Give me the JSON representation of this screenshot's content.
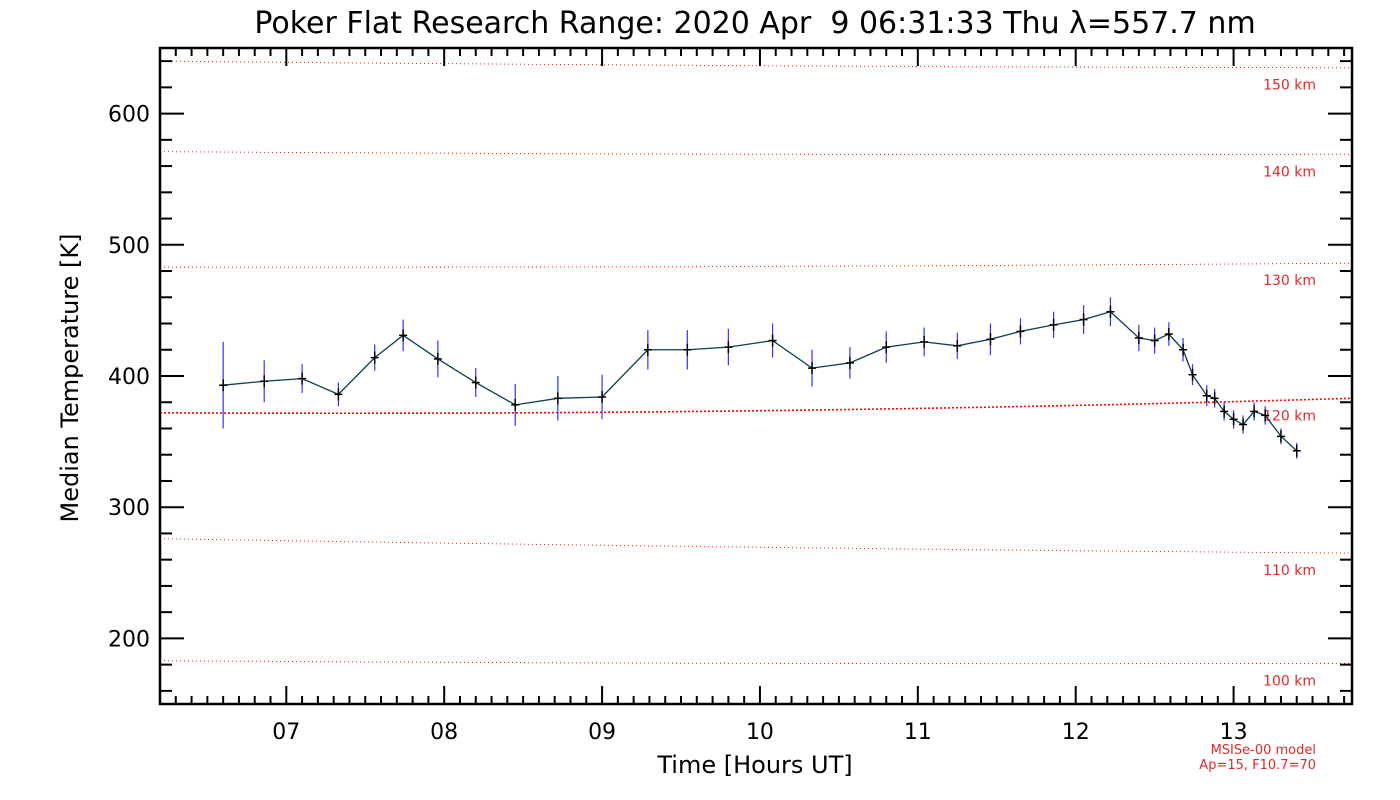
{
  "colors": {
    "axes": "#000000",
    "series_line": "#0b3d52",
    "error_bar": "#3333ff",
    "marker": "#000000",
    "model_line": "#ff0000",
    "model_text": "#e0292b",
    "background": "#ffffff"
  },
  "chart_data": {
    "type": "line",
    "title": "Poker Flat Research Range: 2020 Apr  9 06:31:33 Thu λ=557.7 nm",
    "xlabel": "Time [Hours UT]",
    "ylabel": "Median Temperature [K]",
    "xlim": [
      6.2,
      13.75
    ],
    "ylim": [
      150,
      650
    ],
    "xticks": [
      7,
      8,
      9,
      10,
      11,
      12,
      13
    ],
    "xtick_labels": [
      "07",
      "08",
      "09",
      "10",
      "11",
      "12",
      "13"
    ],
    "yticks": [
      200,
      300,
      400,
      500,
      600
    ],
    "ytick_labels": [
      "200",
      "300",
      "400",
      "500",
      "600"
    ],
    "grid": false,
    "series": [
      {
        "x": [
          6.6,
          6.86,
          7.1,
          7.33,
          7.56,
          7.74,
          7.96,
          8.2,
          8.45,
          8.72,
          9.0,
          9.29,
          9.54,
          9.8,
          10.08,
          10.33,
          10.57,
          10.8,
          11.04,
          11.25,
          11.46,
          11.65,
          11.86,
          12.05,
          12.22,
          12.4,
          12.5,
          12.59,
          12.68,
          12.74,
          12.83,
          12.88,
          12.94,
          13.0,
          13.06,
          13.13,
          13.2,
          13.3,
          13.4
        ],
        "y": [
          393,
          396,
          398,
          386,
          414,
          431,
          413,
          395,
          378,
          383,
          384,
          420,
          420,
          422,
          427,
          406,
          410,
          422,
          426,
          423,
          428,
          434,
          439,
          443,
          449,
          429,
          427,
          432,
          420,
          401,
          385,
          383,
          373,
          367,
          363,
          373,
          370,
          354,
          343
        ],
        "yerr": [
          33,
          16,
          11,
          9,
          10,
          12,
          14,
          11,
          16,
          17,
          17,
          15,
          15,
          14,
          13,
          14,
          12,
          12,
          11,
          10,
          12,
          10,
          10,
          11,
          11,
          10,
          10,
          9,
          9,
          8,
          8,
          7,
          7,
          7,
          7,
          7,
          7,
          6,
          6
        ]
      }
    ],
    "model": {
      "note_lines": [
        "MSISe-00 model",
        "Ap=15, F10.7=70"
      ],
      "levels": [
        {
          "label": "100 km",
          "y_start": 183,
          "y_end": 181
        },
        {
          "label": "110 km",
          "y_start": 276,
          "y_end": 265
        },
        {
          "label": "120 km",
          "y_start": 372,
          "y_end": 383
        },
        {
          "label": "130 km",
          "y_start": 483,
          "y_end": 486
        },
        {
          "label": "140 km",
          "y_start": 571,
          "y_end": 569
        },
        {
          "label": "150 km",
          "y_start": 640,
          "y_end": 635
        }
      ]
    }
  }
}
